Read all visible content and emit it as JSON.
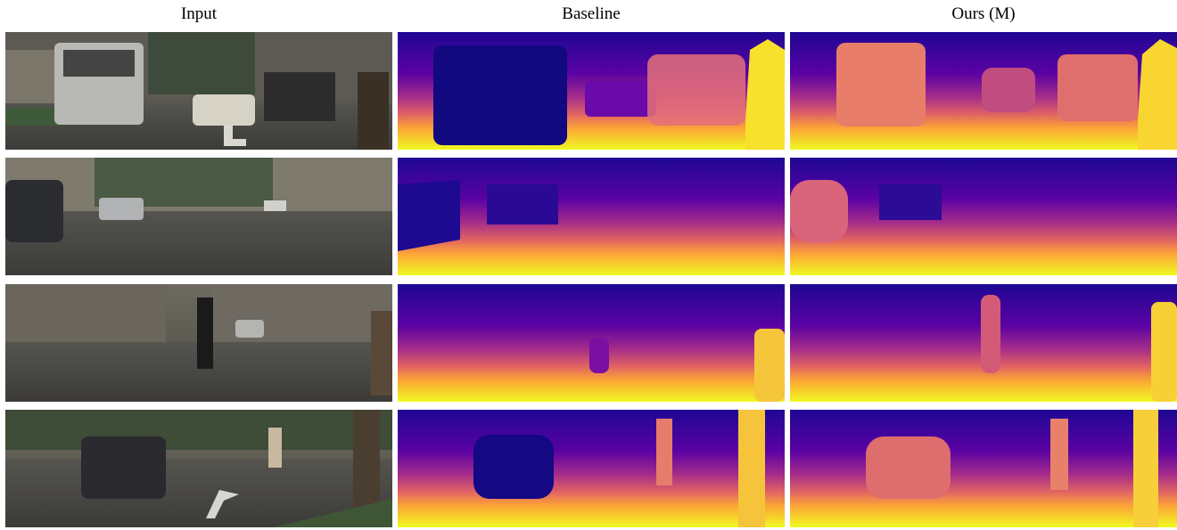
{
  "figure": {
    "columns": [
      {
        "key": "input",
        "title": "Input"
      },
      {
        "key": "baseline",
        "title": "Baseline"
      },
      {
        "key": "ours",
        "title": "Ours (M)"
      }
    ],
    "rows": [
      {
        "scene": "street with white van and vintage car"
      },
      {
        "scene": "wide road with parked cars"
      },
      {
        "scene": "crosswalk with pedestrian and tram"
      },
      {
        "scene": "intersection with dark station wagon"
      }
    ]
  },
  "colors": {
    "depth_far": "#0d0887",
    "depth_mid": "#7e03a8",
    "depth_mid2": "#cc4778",
    "depth_near": "#f89540",
    "depth_nearest": "#f0f921"
  }
}
